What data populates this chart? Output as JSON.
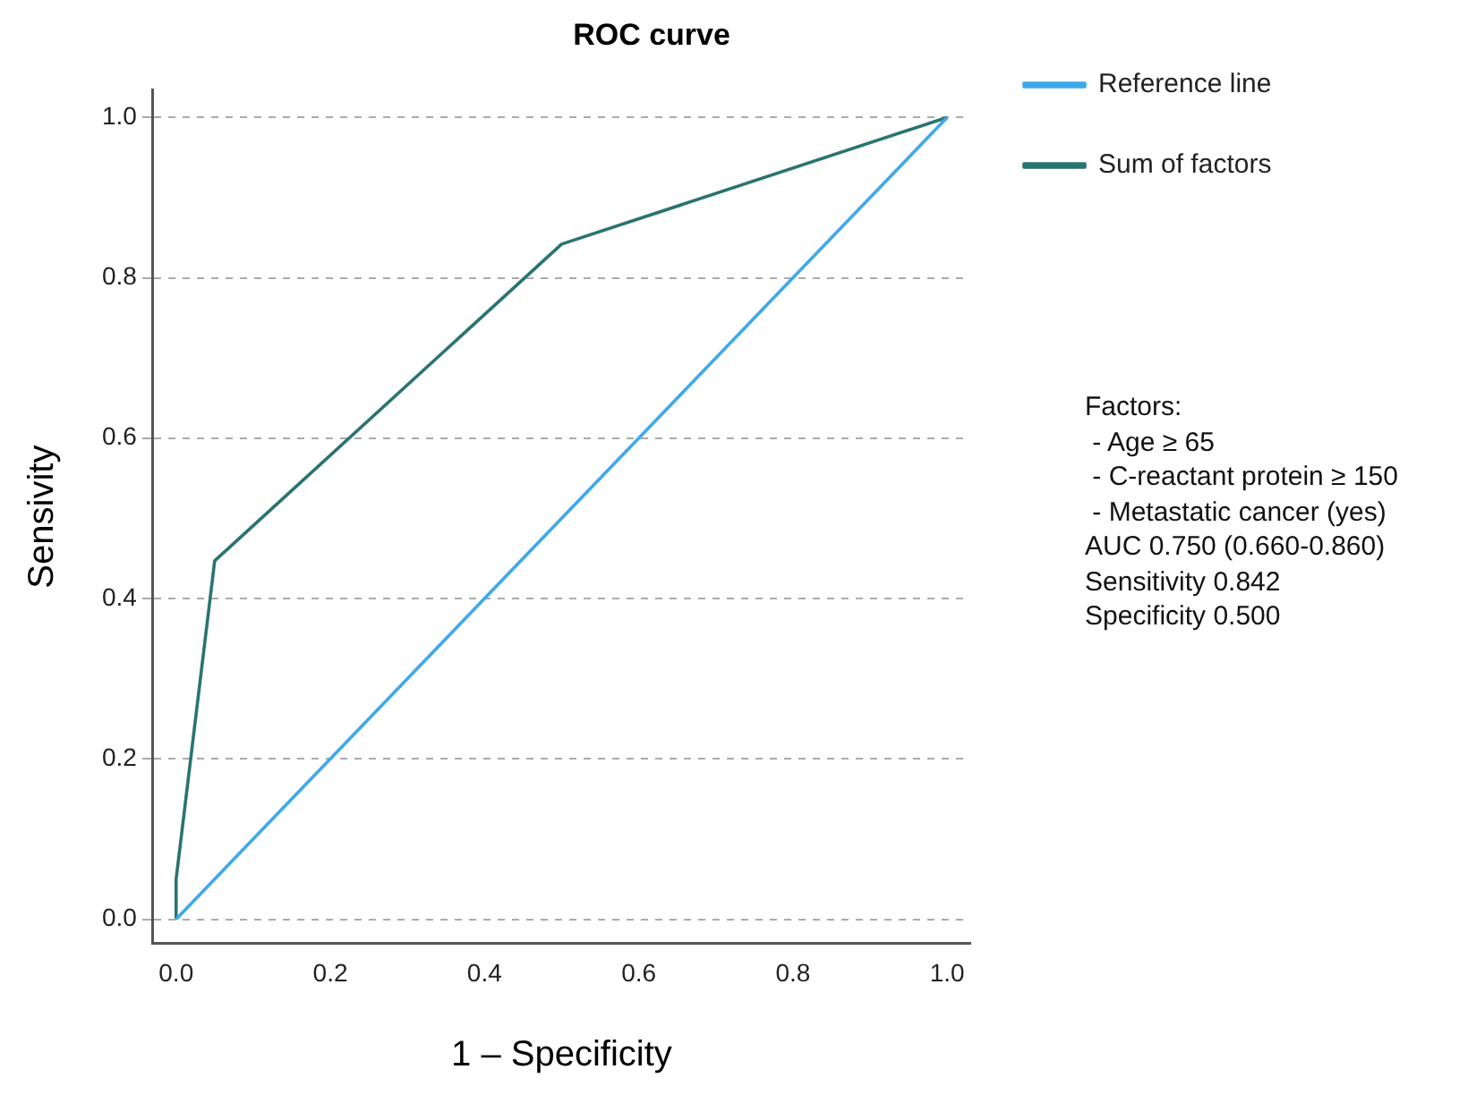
{
  "chart_data": {
    "type": "line",
    "title": "ROC curve",
    "xlabel": "1 – Specificity",
    "ylabel": "Sensivity",
    "xlim": [
      -0.03,
      1.03
    ],
    "ylim": [
      -0.03,
      1.034
    ],
    "xticks": [
      {
        "value": 0,
        "label": "0.0"
      },
      0.2,
      0.4,
      0.6,
      0.8,
      {
        "value": 1,
        "label": "1.0"
      }
    ],
    "yticks": [
      {
        "value": 0,
        "label": "0.0"
      },
      0.2,
      0.4,
      0.6,
      0.8,
      {
        "value": 1,
        "label": "1.0"
      }
    ],
    "grid": "y",
    "legend": "right",
    "marker": "none",
    "line_style": "solid",
    "series": [
      {
        "name": "Reference line",
        "color": "#3ea9ea",
        "x": [
          0,
          1
        ],
        "values": [
          0,
          1
        ]
      },
      {
        "name": "Sum of factors",
        "color": "#2a7470",
        "x": [
          0,
          0,
          0.05,
          0.5,
          1
        ],
        "values": [
          0,
          0.05,
          0.447,
          0.842,
          1
        ]
      }
    ],
    "annotations": [
      "Factors:",
      " - Age ≥ 65",
      " - C-reactant protein ≥ 150",
      " - Metastatic cancer (yes)",
      "AUC 0.750 (0.660-0.860)",
      "Sensitivity 0.842",
      "Specificity 0.500"
    ]
  }
}
